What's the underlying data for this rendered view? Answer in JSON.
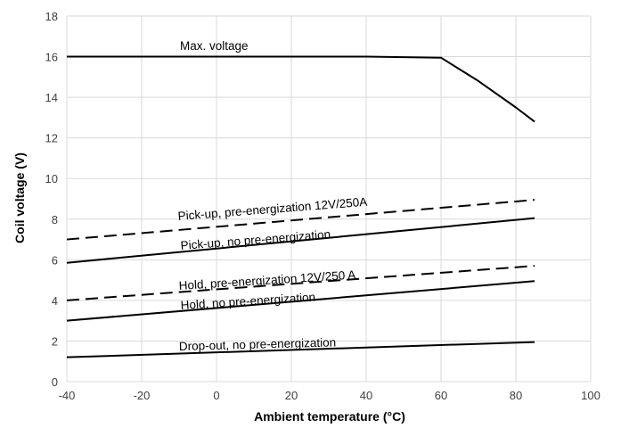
{
  "chart_data": {
    "type": "line",
    "xlabel": "Ambient temperature (°C)",
    "ylabel": "Coil voltage (V)",
    "xlim": [
      -40,
      100
    ],
    "ylim": [
      0,
      18
    ],
    "xticks": [
      -40,
      -20,
      0,
      20,
      40,
      60,
      80,
      100
    ],
    "yticks": [
      0,
      2,
      4,
      6,
      8,
      10,
      12,
      14,
      16,
      18
    ],
    "grid": "both",
    "legend": "none",
    "series": [
      {
        "name": "Max. voltage",
        "style": "solid",
        "x": [
          -40,
          40,
          60,
          70,
          80,
          85
        ],
        "y": [
          16,
          16,
          15.95,
          14.8,
          13.5,
          12.8
        ]
      },
      {
        "name": "Pick-up, pre-energization 12V/250A",
        "style": "dashed",
        "x": [
          -40,
          85
        ],
        "y": [
          7.0,
          8.95
        ]
      },
      {
        "name": "Pick-up, no pre-energization",
        "style": "solid",
        "x": [
          -40,
          85
        ],
        "y": [
          5.85,
          8.05
        ]
      },
      {
        "name": "Hold, pre-energization 12V/250 A",
        "style": "dashed",
        "x": [
          -40,
          85
        ],
        "y": [
          4.0,
          5.7
        ]
      },
      {
        "name": "Hold, no pre-energization",
        "style": "solid",
        "x": [
          -40,
          85
        ],
        "y": [
          3.0,
          4.95
        ]
      },
      {
        "name": "Drop-out, no pre-energization",
        "style": "solid",
        "x": [
          -40,
          85
        ],
        "y": [
          1.2,
          1.95
        ]
      }
    ],
    "line_color": "#000000",
    "grid_color": "#d9d9d9"
  }
}
